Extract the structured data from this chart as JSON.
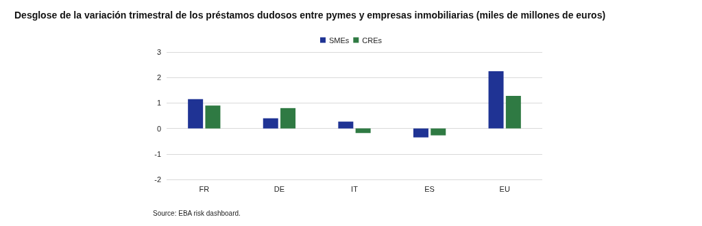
{
  "chart_data": {
    "type": "bar",
    "title": "Desglose de la variación trimestral de los préstamos dudosos entre pymes y empresas inmobiliarias (miles de millones de euros)",
    "categories": [
      "FR",
      "DE",
      "IT",
      "ES",
      "EU"
    ],
    "series": [
      {
        "name": "SMEs",
        "color": "#1f3394",
        "values": [
          1.15,
          0.4,
          0.27,
          -0.35,
          2.25
        ]
      },
      {
        "name": "CREs",
        "color": "#2f7a43",
        "values": [
          0.9,
          0.8,
          -0.18,
          -0.27,
          1.28
        ]
      }
    ],
    "ylim": [
      -2,
      3
    ],
    "yticks": [
      -2,
      -1,
      0,
      1,
      2,
      3
    ],
    "grid": "y",
    "legend": "top",
    "annotations": [
      "Source: EBA risk dashboard."
    ]
  }
}
